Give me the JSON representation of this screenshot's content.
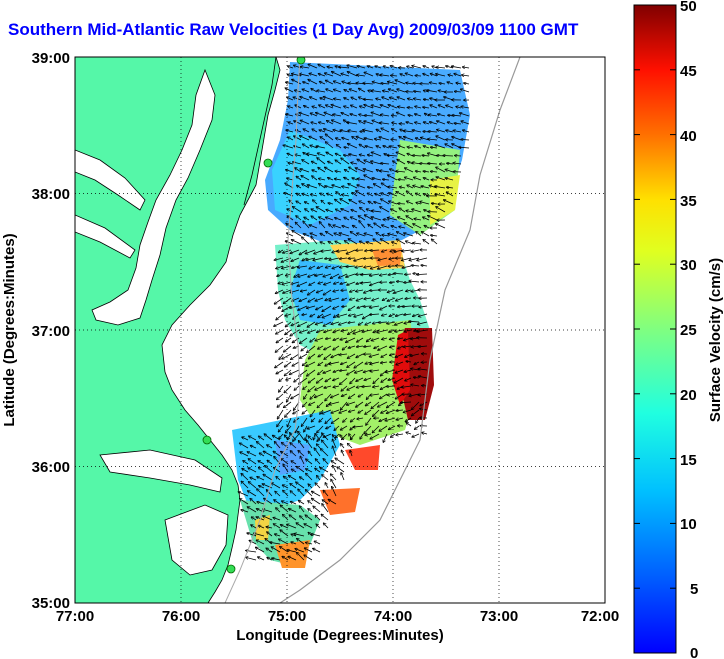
{
  "title": "Southern Mid-Atlantic Raw Velocities (1 Day Avg) 2009/03/09 1100 GMT",
  "map": {
    "xlabel": "Longitude (Degrees:Minutes)",
    "ylabel": "Latitude (Degrees:Minutes)",
    "x_ticks": [
      "77:00",
      "76:00",
      "75:00",
      "74:00",
      "73:00",
      "72:00"
    ],
    "y_ticks": [
      "39:00",
      "38:00",
      "37:00",
      "36:00",
      "35:00"
    ],
    "lon_range": [
      -77,
      -72
    ],
    "lat_range": [
      35,
      39
    ],
    "grid": true,
    "land_color": "#55f7a8",
    "water_color": "#ffffff"
  },
  "colorbar": {
    "label": "Surface Velocity (cm/s)",
    "ticks": [
      "50",
      "45",
      "40",
      "35",
      "30",
      "25",
      "20",
      "15",
      "10",
      "5",
      "0"
    ],
    "range": [
      0,
      50
    ],
    "colormap": "jet",
    "placement": "right"
  }
}
